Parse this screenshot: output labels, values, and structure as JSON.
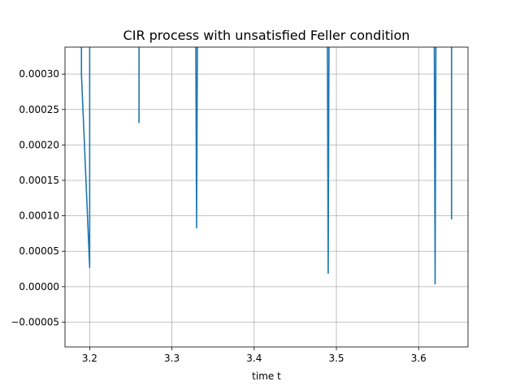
{
  "chart_data": {
    "type": "line",
    "title": "CIR process with unsatisfied Feller condition",
    "xlabel": "time t",
    "ylabel": "",
    "xlim": [
      3.17,
      3.66
    ],
    "ylim": [
      -8.5e-05,
      0.000338
    ],
    "grid": true,
    "x_ticks": [
      3.2,
      3.3,
      3.4,
      3.5,
      3.6
    ],
    "x_tick_labels": [
      "3.2",
      "3.3",
      "3.4",
      "3.5",
      "3.6"
    ],
    "y_ticks": [
      -5e-05,
      0.0,
      5e-05,
      0.0001,
      0.00015,
      0.0002,
      0.00025,
      0.0003
    ],
    "y_tick_labels": [
      "−0.00005",
      "0.00000",
      "0.00005",
      "0.00010",
      "0.00015",
      "0.00020",
      "0.00025",
      "0.00030"
    ],
    "series": [
      {
        "color": "#1f77b4",
        "x": [
          3.19,
          3.19,
          3.2,
          3.2,
          null,
          3.26,
          3.26,
          null,
          3.329,
          3.33,
          3.331,
          null,
          3.489,
          3.49,
          3.491,
          null,
          3.619,
          3.62,
          3.621,
          null,
          3.64,
          3.64
        ],
        "y": [
          0.00035,
          0.0003,
          2.7e-05,
          0.00035,
          null,
          0.00035,
          0.000231,
          null,
          0.00035,
          8.3e-05,
          0.00035,
          null,
          0.00035,
          1.9e-05,
          0.00035,
          null,
          0.00035,
          4e-06,
          0.00035,
          null,
          0.00035,
          9.5e-05
        ]
      }
    ]
  }
}
